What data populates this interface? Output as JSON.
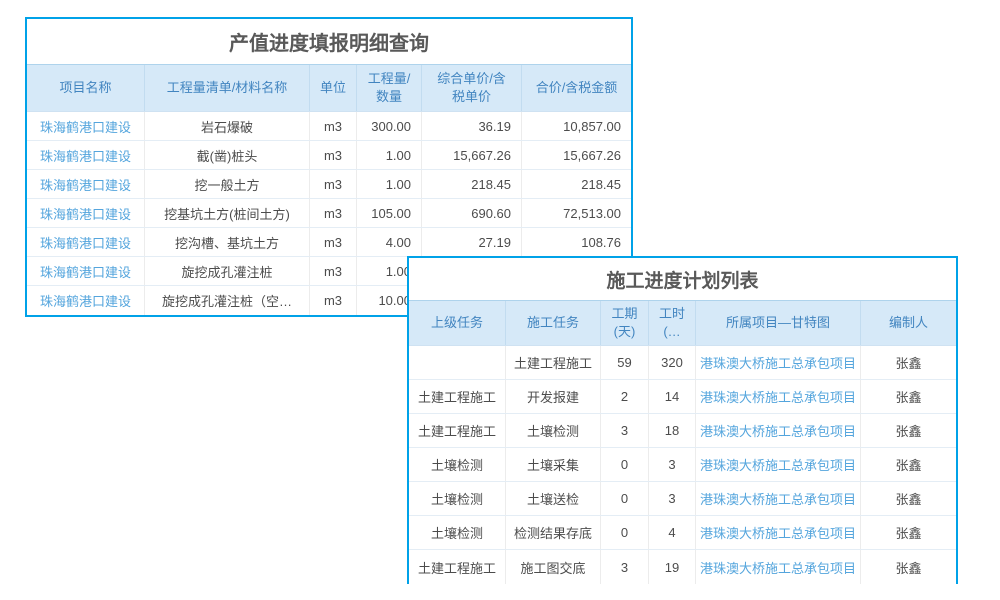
{
  "colors": {
    "table_border": "#00a2e8",
    "header_bg": "#d6e9f8",
    "header_text": "#4285c0",
    "link": "#54a5dd",
    "title_text": "#595959",
    "body_text": "#4c4c4c"
  },
  "table1": {
    "title": "产值进度填报明细查询",
    "columns": [
      "项目名称",
      "工程量清单/材料名称",
      "单位",
      "工程量/\n数量",
      "综合单价/含\n税单价",
      "合价/含税金额"
    ],
    "rows": [
      {
        "project": "珠海鹤港口建设",
        "item": "岩石爆破",
        "unit": "m3",
        "qty": "300.00",
        "price": "36.19",
        "amount": "10,857.00"
      },
      {
        "project": "珠海鹤港口建设",
        "item": "截(凿)桩头",
        "unit": "m3",
        "qty": "1.00",
        "price": "15,667.26",
        "amount": "15,667.26"
      },
      {
        "project": "珠海鹤港口建设",
        "item": "挖一般土方",
        "unit": "m3",
        "qty": "1.00",
        "price": "218.45",
        "amount": "218.45"
      },
      {
        "project": "珠海鹤港口建设",
        "item": "挖基坑土方(桩间土方)",
        "unit": "m3",
        "qty": "105.00",
        "price": "690.60",
        "amount": "72,513.00"
      },
      {
        "project": "珠海鹤港口建设",
        "item": "挖沟槽、基坑土方",
        "unit": "m3",
        "qty": "4.00",
        "price": "27.19",
        "amount": "108.76"
      },
      {
        "project": "珠海鹤港口建设",
        "item": "旋挖成孔灌注桩",
        "unit": "m3",
        "qty": "1.00",
        "price": "",
        "amount": ""
      },
      {
        "project": "珠海鹤港口建设",
        "item": "旋挖成孔灌注桩（空…",
        "unit": "m3",
        "qty": "10.00",
        "price": "",
        "amount": ""
      }
    ]
  },
  "table2": {
    "title": "施工进度计划列表",
    "columns": [
      "上级任务",
      "施工任务",
      "工期\n(天)",
      "工时\n(…",
      "所属项目—甘特图",
      "编制人"
    ],
    "rows": [
      {
        "parent": "",
        "task": "土建工程施工",
        "duration": "59",
        "hours": "320",
        "project": "港珠澳大桥施工总承包项目",
        "author": "张鑫"
      },
      {
        "parent": "土建工程施工",
        "task": "开发报建",
        "duration": "2",
        "hours": "14",
        "project": "港珠澳大桥施工总承包项目",
        "author": "张鑫"
      },
      {
        "parent": "土建工程施工",
        "task": "土壤检测",
        "duration": "3",
        "hours": "18",
        "project": "港珠澳大桥施工总承包项目",
        "author": "张鑫"
      },
      {
        "parent": "土壤检测",
        "task": "土壤采集",
        "duration": "0",
        "hours": "3",
        "project": "港珠澳大桥施工总承包项目",
        "author": "张鑫"
      },
      {
        "parent": "土壤检测",
        "task": "土壤送检",
        "duration": "0",
        "hours": "3",
        "project": "港珠澳大桥施工总承包项目",
        "author": "张鑫"
      },
      {
        "parent": "土壤检测",
        "task": "检测结果存底",
        "duration": "0",
        "hours": "4",
        "project": "港珠澳大桥施工总承包项目",
        "author": "张鑫"
      },
      {
        "parent": "土建工程施工",
        "task": "施工图交底",
        "duration": "3",
        "hours": "19",
        "project": "港珠澳大桥施工总承包项目",
        "author": "张鑫"
      }
    ]
  }
}
